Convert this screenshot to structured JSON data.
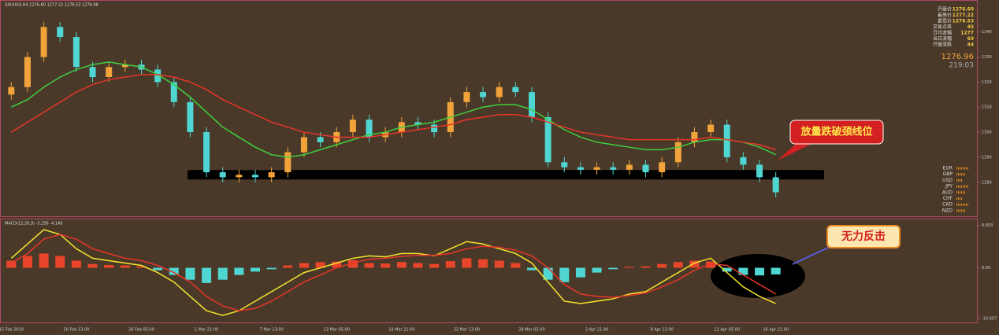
{
  "chart_data": [
    {
      "type": "candlestick",
      "title": "XAUUSD,H4 1276.60 1277.22 1276.53 1276.96",
      "categories": [
        "15 Feb 2019",
        null,
        null,
        null,
        "20 Feb 13:00",
        null,
        null,
        null,
        "26 Feb 05:00",
        null,
        null,
        null,
        "1 Mar 21:00",
        null,
        null,
        null,
        "7 Mar 13:00",
        null,
        null,
        null,
        "13 Mar 05:00",
        null,
        null,
        null,
        "18 Mar 21:00",
        null,
        null,
        null,
        "22 Mar 13:00",
        null,
        null,
        null,
        "28 Mar 05:00",
        null,
        null,
        null,
        "2 Apr 21:00",
        null,
        null,
        null,
        "8 Apr 13:00",
        null,
        null,
        null,
        "12 Apr 05:00",
        null,
        null,
        "16 Apr 21:00"
      ],
      "open": [
        1315,
        1318,
        1330,
        1342,
        1338,
        1326,
        1322,
        1326,
        1327,
        1325,
        1320,
        1312,
        1300,
        1284,
        1282,
        1283,
        1282,
        1284,
        1292,
        1298,
        1296,
        1300,
        1305,
        1298,
        1300,
        1304,
        1303,
        1300,
        1312,
        1316,
        1314,
        1318,
        1316,
        1306,
        1288,
        1286,
        1285,
        1286,
        1285,
        1287,
        1284,
        1288,
        1296,
        1300,
        1303,
        1290,
        1287,
        1282
      ],
      "high": [
        1320,
        1332,
        1344,
        1344,
        1340,
        1328,
        1328,
        1329,
        1329,
        1327,
        1322,
        1314,
        1302,
        1286,
        1285,
        1285,
        1286,
        1294,
        1300,
        1300,
        1302,
        1307,
        1307,
        1302,
        1306,
        1306,
        1305,
        1314,
        1318,
        1318,
        1320,
        1320,
        1318,
        1308,
        1290,
        1288,
        1288,
        1288,
        1289,
        1289,
        1290,
        1298,
        1302,
        1305,
        1305,
        1292,
        1289,
        1284
      ],
      "low": [
        1313,
        1316,
        1328,
        1336,
        1324,
        1320,
        1320,
        1324,
        1323,
        1318,
        1310,
        1298,
        1282,
        1280,
        1280,
        1280,
        1280,
        1282,
        1290,
        1294,
        1294,
        1298,
        1296,
        1296,
        1298,
        1301,
        1298,
        1298,
        1310,
        1312,
        1312,
        1314,
        1304,
        1286,
        1284,
        1283,
        1283,
        1283,
        1283,
        1282,
        1282,
        1286,
        1294,
        1298,
        1288,
        1285,
        1280,
        1274
      ],
      "close": [
        1318,
        1330,
        1342,
        1338,
        1326,
        1322,
        1326,
        1327,
        1325,
        1320,
        1312,
        1300,
        1284,
        1282,
        1283,
        1282,
        1284,
        1292,
        1298,
        1296,
        1300,
        1305,
        1298,
        1300,
        1304,
        1303,
        1300,
        1312,
        1316,
        1314,
        1318,
        1316,
        1306,
        1288,
        1286,
        1285,
        1286,
        1285,
        1287,
        1284,
        1288,
        1296,
        1300,
        1303,
        1290,
        1287,
        1282,
        1276
      ],
      "up_color": "#f2a33a",
      "down_color": "#4fd6d2",
      "series": [
        {
          "color": "#3fcf3f",
          "values": [
            1310,
            1313,
            1318,
            1322,
            1325,
            1327,
            1328,
            1327,
            1326,
            1323,
            1319,
            1314,
            1308,
            1302,
            1298,
            1294,
            1291,
            1290,
            1291,
            1293,
            1295,
            1297,
            1299,
            1300,
            1302,
            1303,
            1304,
            1306,
            1308,
            1310,
            1311,
            1311,
            1309,
            1305,
            1301,
            1298,
            1296,
            1295,
            1294,
            1293,
            1293,
            1294,
            1296,
            1297,
            1297,
            1296,
            1294,
            1291
          ]
        },
        {
          "color": "#e8352a",
          "values": [
            1300,
            1304,
            1308,
            1312,
            1316,
            1319,
            1321,
            1322,
            1323,
            1323,
            1322,
            1320,
            1317,
            1313,
            1310,
            1307,
            1304,
            1302,
            1300,
            1299,
            1298,
            1298,
            1298,
            1299,
            1300,
            1301,
            1302,
            1303,
            1305,
            1306,
            1307,
            1307,
            1306,
            1304,
            1302,
            1300,
            1299,
            1298,
            1297,
            1297,
            1297,
            1297,
            1297,
            1298,
            1297,
            1296,
            1295,
            1293
          ]
        }
      ],
      "neckline": 1283,
      "ylim": [
        1268,
        1349
      ],
      "yticks": [
        1280,
        1290,
        1300,
        1310,
        1320,
        1330,
        1340
      ]
    },
    {
      "type": "macd",
      "title": "MACD(12,26,9) -5.256 -4.149",
      "values": [
        1.5,
        2.5,
        3.0,
        2.5,
        1.5,
        0.8,
        0.6,
        0.5,
        0.3,
        -0.5,
        -1.5,
        -2.5,
        -3.2,
        -2.5,
        -1.5,
        -0.8,
        -0.3,
        0.5,
        1.0,
        1.2,
        1.3,
        1.6,
        1.0,
        0.9,
        1.2,
        1.0,
        0.8,
        1.4,
        2.0,
        1.8,
        1.5,
        1.0,
        -0.5,
        -2.5,
        -3.0,
        -2.0,
        -1.0,
        -0.3,
        0.2,
        0.3,
        0.8,
        1.2,
        1.5,
        1.3,
        -0.8,
        -1.5,
        -1.6,
        -1.4
      ],
      "up_color": "#e8452a",
      "down_color": "#4fd6d2",
      "series": [
        {
          "color": "#f5e52a",
          "values": [
            2,
            5,
            8,
            7,
            4,
            2,
            1.5,
            1,
            0.5,
            -1,
            -3,
            -6,
            -9,
            -10,
            -9,
            -7,
            -5,
            -3,
            -1,
            0,
            1,
            2,
            2.5,
            2.3,
            3,
            3,
            2.5,
            4,
            5.5,
            5,
            4,
            3,
            1,
            -3,
            -7,
            -7.5,
            -7,
            -6.5,
            -5.5,
            -5,
            -3,
            -1,
            1,
            2,
            -1,
            -4,
            -6,
            -7.5
          ]
        },
        {
          "color": "#e8352a",
          "values": [
            1,
            3,
            6,
            7,
            6,
            4,
            3,
            2,
            1.5,
            0.5,
            -1,
            -3,
            -6,
            -8,
            -9,
            -8.5,
            -7,
            -5,
            -3,
            -1.5,
            0,
            1,
            1.8,
            2,
            2.4,
            2.6,
            2.6,
            3,
            4,
            4.5,
            4.3,
            3.7,
            2.5,
            0,
            -3.5,
            -5.5,
            -6,
            -6.2,
            -5.8,
            -5.3,
            -4,
            -2.5,
            -0.5,
            0.8,
            0.5,
            -1.5,
            -3.5,
            -5.5
          ]
        }
      ],
      "ylim": [
        -10.8,
        9.0
      ],
      "yticks": [
        8.893,
        {
          "value": 0,
          "label": "0.00"
        },
        -10.607
      ]
    }
  ],
  "info_panel": {
    "rows": [
      [
        "开盘价",
        "1276.60"
      ],
      [
        "最高价",
        "1277.22"
      ],
      [
        "最低价",
        "1276.53"
      ],
      [
        "交易点差",
        "45"
      ],
      [
        "日均波幅",
        "1277"
      ],
      [
        "当日波幅",
        "69"
      ],
      [
        "开盘涨跌",
        "44"
      ]
    ],
    "price": "1276.96",
    "timer": "219:03"
  },
  "currencies": [
    "EUR",
    "GBP",
    "USD",
    "JPY",
    "AUD",
    "CHF",
    "CAD",
    "NZD"
  ],
  "annotations": [
    "放量跌破颈线位",
    "无力反击"
  ]
}
